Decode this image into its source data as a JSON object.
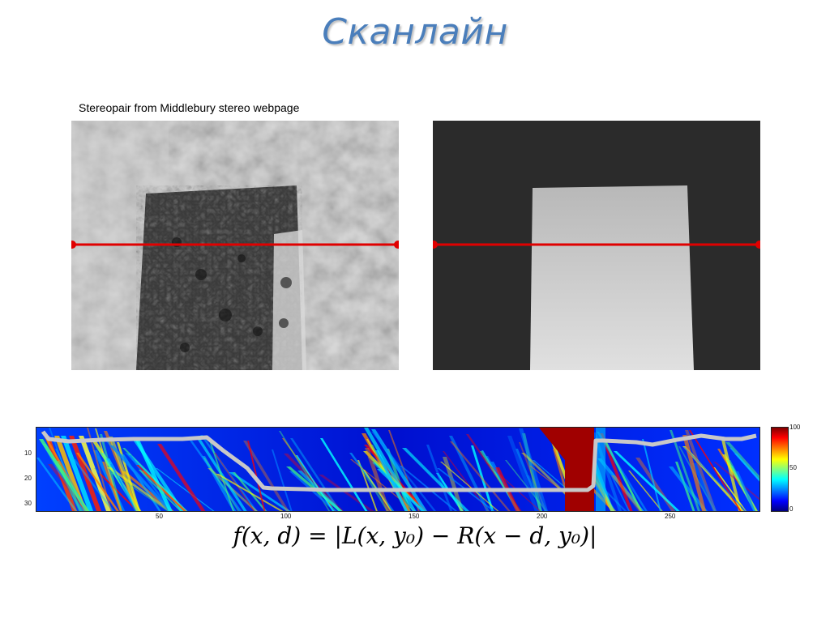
{
  "title": "Сканлайн",
  "caption": "Stereopair from Middlebury stereo webpage",
  "heatmap": {
    "y_ticks": [
      "10",
      "20",
      "30"
    ],
    "x_ticks": [
      "50",
      "100",
      "150",
      "200",
      "250"
    ],
    "colorbar_ticks": [
      "100",
      "50",
      "0"
    ]
  },
  "formula": {
    "lhs": "f(x, d)",
    "rhs": "|L(x, y₀) − R(x − d, y₀)|"
  },
  "colors": {
    "scanline": "#e00000",
    "title": "#4a7ebb",
    "path": "#c8c8c8"
  }
}
